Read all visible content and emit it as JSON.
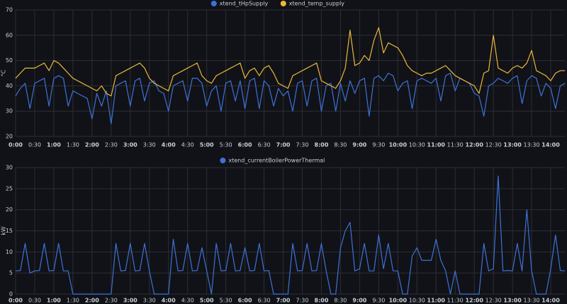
{
  "chart_data": [
    {
      "type": "line",
      "y_label": "°C",
      "grid": true,
      "xlim": [
        0,
        14.37
      ],
      "ylim": [
        20,
        70
      ],
      "yticks": [
        20,
        30,
        40,
        50,
        60,
        70
      ],
      "xticks": [
        {
          "value": 0,
          "label": "0:00"
        },
        {
          "value": 0.5,
          "label": "0:30"
        },
        {
          "value": 1,
          "label": "1:00"
        },
        {
          "value": 1.5,
          "label": "1:30"
        },
        {
          "value": 2,
          "label": "2:00"
        },
        {
          "value": 2.5,
          "label": "2:30"
        },
        {
          "value": 3,
          "label": "3:00"
        },
        {
          "value": 3.5,
          "label": "3:30"
        },
        {
          "value": 4,
          "label": "4:00"
        },
        {
          "value": 4.5,
          "label": "4:30"
        },
        {
          "value": 5,
          "label": "5:00"
        },
        {
          "value": 5.5,
          "label": "5:30"
        },
        {
          "value": 6,
          "label": "6:00"
        },
        {
          "value": 6.5,
          "label": "6:30"
        },
        {
          "value": 7,
          "label": "7:00"
        },
        {
          "value": 7.5,
          "label": "7:30"
        },
        {
          "value": 8,
          "label": "8:00"
        },
        {
          "value": 8.5,
          "label": "8:30"
        },
        {
          "value": 9,
          "label": "9:00"
        },
        {
          "value": 9.5,
          "label": "9:30"
        },
        {
          "value": 10,
          "label": "10:00"
        },
        {
          "value": 10.5,
          "label": "10:30"
        },
        {
          "value": 11,
          "label": "11:00"
        },
        {
          "value": 11.5,
          "label": "11:30"
        },
        {
          "value": 12,
          "label": "12:00"
        },
        {
          "value": 12.5,
          "label": "12:30"
        },
        {
          "value": 13,
          "label": "13:00"
        },
        {
          "value": 13.5,
          "label": "13:30"
        },
        {
          "value": 14,
          "label": "14:00"
        }
      ],
      "x": [
        0,
        0.125,
        0.25,
        0.375,
        0.5,
        0.625,
        0.75,
        0.875,
        1,
        1.125,
        1.25,
        1.375,
        1.5,
        1.625,
        1.75,
        1.875,
        2,
        2.125,
        2.25,
        2.375,
        2.5,
        2.625,
        2.75,
        2.875,
        3,
        3.125,
        3.25,
        3.375,
        3.5,
        3.625,
        3.75,
        3.875,
        4,
        4.125,
        4.25,
        4.375,
        4.5,
        4.625,
        4.75,
        4.875,
        5,
        5.125,
        5.25,
        5.375,
        5.5,
        5.625,
        5.75,
        5.875,
        6,
        6.125,
        6.25,
        6.375,
        6.5,
        6.625,
        6.75,
        6.875,
        7,
        7.125,
        7.25,
        7.375,
        7.5,
        7.625,
        7.75,
        7.875,
        8,
        8.125,
        8.25,
        8.375,
        8.5,
        8.625,
        8.75,
        8.875,
        9,
        9.125,
        9.25,
        9.375,
        9.5,
        9.625,
        9.75,
        9.875,
        10,
        10.125,
        10.25,
        10.375,
        10.5,
        10.625,
        10.75,
        10.875,
        11,
        11.125,
        11.25,
        11.375,
        11.5,
        11.625,
        11.75,
        11.875,
        12,
        12.125,
        12.25,
        12.375,
        12.5,
        12.625,
        12.75,
        12.875,
        13,
        13.125,
        13.25,
        13.375,
        13.5,
        13.625,
        13.75,
        13.875,
        14,
        14.125,
        14.25,
        14.375
      ],
      "series": [
        {
          "name": "xtend_tHpSupply",
          "color": "#3d71d9",
          "values": [
            36,
            39,
            41,
            31,
            41,
            42,
            43,
            32,
            43,
            44,
            43,
            32,
            38,
            37,
            36,
            35,
            27,
            37,
            32,
            38,
            25,
            40,
            41,
            42,
            32,
            42,
            43,
            34,
            41,
            42,
            38,
            37,
            30,
            40,
            41,
            42,
            34,
            43,
            43,
            41,
            32,
            38,
            40,
            30,
            41,
            42,
            34,
            42,
            31,
            42,
            43,
            31,
            42,
            40,
            32,
            39,
            36,
            38,
            30,
            41,
            42,
            32,
            42,
            43,
            30,
            40,
            41,
            30,
            41,
            34,
            42,
            37,
            42,
            43,
            28,
            43,
            44,
            42,
            45,
            44,
            38,
            41,
            42,
            31,
            42,
            43,
            42,
            41,
            43,
            34,
            44,
            45,
            38,
            43,
            42,
            41,
            37,
            36,
            28,
            40,
            41,
            43,
            42,
            41,
            43,
            44,
            33,
            42,
            44,
            43,
            36,
            41,
            39,
            31,
            40,
            41
          ]
        },
        {
          "name": "xtend_temp_supply",
          "color": "#eab839",
          "values": [
            43,
            45,
            47,
            47,
            47,
            48,
            49,
            46,
            50,
            49,
            47,
            45,
            43,
            42,
            41,
            40,
            39,
            38,
            40,
            37,
            36,
            44,
            45,
            46,
            47,
            48,
            49,
            47,
            43,
            41,
            40,
            39,
            38,
            44,
            45,
            46,
            47,
            48,
            49,
            44,
            42,
            41,
            44,
            45,
            46,
            47,
            48,
            49,
            43,
            46,
            47,
            44,
            47,
            48,
            45,
            41,
            40,
            39,
            44,
            45,
            46,
            47,
            48,
            49,
            42,
            41,
            40,
            39,
            42,
            47,
            62,
            48,
            49,
            52,
            50,
            58,
            63,
            53,
            57,
            56,
            55,
            52,
            48,
            46,
            45,
            44,
            45,
            45,
            46,
            47,
            48,
            46,
            44,
            43,
            42,
            41,
            40,
            37,
            45,
            46,
            60,
            47,
            46,
            45,
            47,
            48,
            47,
            49,
            54,
            46,
            45,
            44,
            42,
            45,
            46,
            46
          ]
        }
      ]
    },
    {
      "type": "line",
      "y_label": "kW",
      "grid": true,
      "xlim": [
        0,
        14.37
      ],
      "ylim": [
        0,
        30
      ],
      "yticks": [
        0,
        5,
        10,
        15,
        20,
        25,
        30
      ],
      "xticks": [
        {
          "value": 0,
          "label": "0:00"
        },
        {
          "value": 0.5,
          "label": "0:30"
        },
        {
          "value": 1,
          "label": "1:00"
        },
        {
          "value": 1.5,
          "label": "1:30"
        },
        {
          "value": 2,
          "label": "2:00"
        },
        {
          "value": 2.5,
          "label": "2:30"
        },
        {
          "value": 3,
          "label": "3:00"
        },
        {
          "value": 3.5,
          "label": "3:30"
        },
        {
          "value": 4,
          "label": "4:00"
        },
        {
          "value": 4.5,
          "label": "4:30"
        },
        {
          "value": 5,
          "label": "5:00"
        },
        {
          "value": 5.5,
          "label": "5:30"
        },
        {
          "value": 6,
          "label": "6:00"
        },
        {
          "value": 6.5,
          "label": "6:30"
        },
        {
          "value": 7,
          "label": "7:00"
        },
        {
          "value": 7.5,
          "label": "7:30"
        },
        {
          "value": 8,
          "label": "8:00"
        },
        {
          "value": 8.5,
          "label": "8:30"
        },
        {
          "value": 9,
          "label": "9:00"
        },
        {
          "value": 9.5,
          "label": "9:30"
        },
        {
          "value": 10,
          "label": "10:00"
        },
        {
          "value": 10.5,
          "label": "10:30"
        },
        {
          "value": 11,
          "label": "11:00"
        },
        {
          "value": 11.5,
          "label": "11:30"
        },
        {
          "value": 12,
          "label": "12:00"
        },
        {
          "value": 12.5,
          "label": "12:30"
        },
        {
          "value": 13,
          "label": "13:00"
        },
        {
          "value": 13.5,
          "label": "13:30"
        },
        {
          "value": 14,
          "label": "14:00"
        }
      ],
      "x": [
        0,
        0.125,
        0.25,
        0.375,
        0.5,
        0.625,
        0.75,
        0.875,
        1,
        1.125,
        1.25,
        1.375,
        1.5,
        1.625,
        1.75,
        1.875,
        2,
        2.125,
        2.25,
        2.375,
        2.5,
        2.625,
        2.75,
        2.875,
        3,
        3.125,
        3.25,
        3.375,
        3.5,
        3.625,
        3.75,
        3.875,
        4,
        4.125,
        4.25,
        4.375,
        4.5,
        4.625,
        4.75,
        4.875,
        5,
        5.125,
        5.25,
        5.375,
        5.5,
        5.625,
        5.75,
        5.875,
        6,
        6.125,
        6.25,
        6.375,
        6.5,
        6.625,
        6.75,
        6.875,
        7,
        7.125,
        7.25,
        7.375,
        7.5,
        7.625,
        7.75,
        7.875,
        8,
        8.125,
        8.25,
        8.375,
        8.5,
        8.625,
        8.75,
        8.875,
        9,
        9.125,
        9.25,
        9.375,
        9.5,
        9.625,
        9.75,
        9.875,
        10,
        10.125,
        10.25,
        10.375,
        10.5,
        10.625,
        10.75,
        10.875,
        11,
        11.125,
        11.25,
        11.375,
        11.5,
        11.625,
        11.75,
        11.875,
        12,
        12.125,
        12.25,
        12.375,
        12.5,
        12.625,
        12.75,
        12.875,
        13,
        13.125,
        13.25,
        13.375,
        13.5,
        13.625,
        13.75,
        13.875,
        14,
        14.125,
        14.25,
        14.375
      ],
      "series": [
        {
          "name": "xtend_currentBoilerPowerThermal",
          "color": "#3d71d9",
          "values": [
            5.5,
            5.6,
            12,
            5,
            5.5,
            5.6,
            12,
            5.5,
            5.6,
            12,
            5.5,
            5.5,
            0,
            0,
            0,
            0,
            0,
            0,
            0,
            0,
            0,
            12,
            5.5,
            5.6,
            12,
            5.5,
            5.6,
            12,
            5.5,
            0,
            0,
            0,
            0,
            13,
            5.5,
            5.6,
            12,
            5.5,
            5.6,
            11,
            5.5,
            0,
            12,
            5.5,
            5.6,
            12,
            5.5,
            5.6,
            11,
            5.5,
            5.6,
            12,
            5.5,
            5.6,
            0,
            0,
            0,
            0,
            12,
            5.5,
            5.6,
            12,
            5.5,
            5.6,
            12,
            5.5,
            0,
            0,
            11,
            15,
            17,
            5.5,
            6,
            12,
            5.5,
            5.5,
            14,
            6,
            12,
            5.5,
            5.5,
            0,
            0,
            9,
            11,
            8,
            8,
            8,
            13,
            8,
            5.5,
            0,
            5.5,
            0,
            0,
            0,
            0,
            0,
            12,
            5.5,
            6,
            28,
            5.5,
            5.6,
            5.5,
            12,
            5.5,
            20,
            5.5,
            0,
            0,
            0,
            6,
            14,
            5.6,
            5.5
          ]
        }
      ]
    }
  ]
}
